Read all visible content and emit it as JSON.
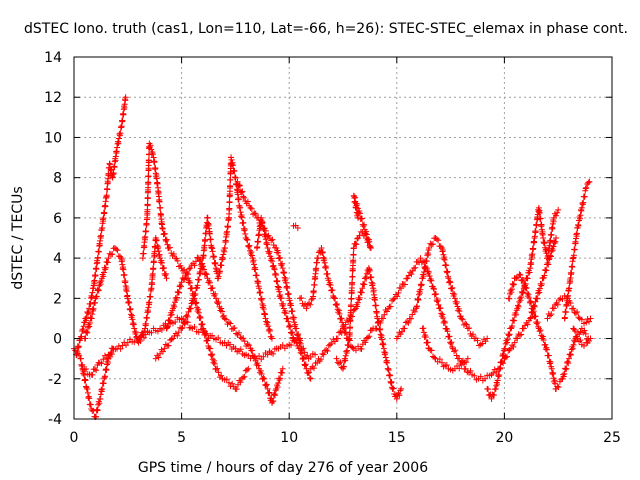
{
  "chart_data": {
    "type": "scatter",
    "title": "dSTEC Iono. truth (cas1, Lon=110, Lat=-66, h=26): STEC-STEC_elemax in phase cont.",
    "xlabel": "GPS time / hours of day 276 of year 2006",
    "ylabel": "dSTEC  / TECUs",
    "xlim": [
      0,
      25
    ],
    "ylim": [
      -4,
      14
    ],
    "xticks": [
      0,
      5,
      10,
      15,
      20,
      25
    ],
    "yticks": [
      -4,
      -2,
      0,
      2,
      4,
      6,
      8,
      10,
      12,
      14
    ],
    "grid": true,
    "marker": "+",
    "colors": {
      "series": "#ff0000",
      "axes": "#000000",
      "grid": "#a0a0a0"
    },
    "series": [
      {
        "values": [
          [
            0.0,
            -0.5
          ],
          [
            0.3,
            -1.0
          ],
          [
            0.6,
            -2.5
          ],
          [
            0.8,
            -3.5
          ],
          [
            1.0,
            -3.9
          ],
          [
            1.2,
            -3.0
          ],
          [
            1.4,
            -2.0
          ],
          [
            1.6,
            -1.0
          ],
          [
            1.8,
            -0.5
          ]
        ]
      },
      {
        "values": [
          [
            0.1,
            -0.8
          ],
          [
            0.3,
            0.0
          ],
          [
            0.5,
            0.8
          ],
          [
            0.7,
            1.5
          ],
          [
            0.9,
            2.5
          ],
          [
            1.1,
            4.0
          ],
          [
            1.3,
            5.5
          ],
          [
            1.5,
            7.0
          ],
          [
            1.65,
            8.7
          ],
          [
            1.8,
            8.0
          ],
          [
            2.0,
            9.5
          ],
          [
            2.2,
            10.5
          ],
          [
            2.4,
            12.0
          ]
        ]
      },
      {
        "values": [
          [
            0.5,
            0.0
          ],
          [
            0.8,
            1.0
          ],
          [
            1.0,
            2.0
          ],
          [
            1.3,
            3.0
          ],
          [
            1.6,
            4.0
          ],
          [
            1.9,
            4.5
          ],
          [
            2.2,
            4.0
          ],
          [
            2.5,
            2.0
          ],
          [
            2.8,
            0.5
          ],
          [
            3.0,
            -0.2
          ],
          [
            3.3,
            0.5
          ],
          [
            3.6,
            2.5
          ],
          [
            3.8,
            5.0
          ],
          [
            4.0,
            4.0
          ],
          [
            4.3,
            3.0
          ]
        ]
      },
      {
        "values": [
          [
            0.4,
            -1.5
          ],
          [
            0.8,
            -1.8
          ],
          [
            1.2,
            -1.2
          ],
          [
            1.6,
            -0.8
          ],
          [
            2.0,
            -0.5
          ],
          [
            2.5,
            -0.2
          ],
          [
            3.0,
            0.0
          ],
          [
            3.5,
            0.3
          ],
          [
            4.0,
            0.5
          ],
          [
            4.5,
            0.8
          ],
          [
            5.0,
            1.0
          ],
          [
            5.5,
            0.5
          ],
          [
            6.0,
            0.3
          ],
          [
            6.5,
            0.0
          ],
          [
            7.0,
            -0.2
          ],
          [
            7.5,
            -0.5
          ],
          [
            8.0,
            -0.8
          ],
          [
            8.5,
            -1.0
          ],
          [
            9.0,
            -0.8
          ],
          [
            9.5,
            -0.5
          ],
          [
            10.0,
            -0.3
          ],
          [
            10.5,
            0.0
          ]
        ]
      },
      {
        "values": [
          [
            3.2,
            4.0
          ],
          [
            3.4,
            6.0
          ],
          [
            3.5,
            9.7
          ],
          [
            3.7,
            9.0
          ],
          [
            3.9,
            7.5
          ],
          [
            4.1,
            5.5
          ],
          [
            4.4,
            4.5
          ],
          [
            4.7,
            4.0
          ],
          [
            5.0,
            3.5
          ],
          [
            5.3,
            3.0
          ],
          [
            5.6,
            2.0
          ],
          [
            6.0,
            0.5
          ],
          [
            6.3,
            -0.5
          ],
          [
            6.6,
            -1.5
          ],
          [
            6.9,
            -2.0
          ],
          [
            7.2,
            -2.2
          ],
          [
            7.5,
            -2.5
          ],
          [
            7.8,
            -2.0
          ],
          [
            8.1,
            -1.5
          ]
        ]
      },
      {
        "values": [
          [
            3.8,
            -1.0
          ],
          [
            4.2,
            -0.5
          ],
          [
            4.6,
            0.0
          ],
          [
            5.0,
            0.5
          ],
          [
            5.4,
            1.5
          ],
          [
            5.7,
            2.5
          ],
          [
            6.0,
            4.0
          ],
          [
            6.2,
            6.0
          ],
          [
            6.4,
            4.5
          ],
          [
            6.7,
            3.0
          ],
          [
            7.0,
            4.5
          ],
          [
            7.2,
            6.0
          ],
          [
            7.3,
            9.0
          ],
          [
            7.5,
            8.0
          ],
          [
            7.7,
            6.5
          ],
          [
            8.0,
            5.0
          ],
          [
            8.3,
            4.0
          ],
          [
            8.6,
            2.5
          ],
          [
            8.9,
            1.0
          ],
          [
            9.2,
            0.0
          ]
        ]
      },
      {
        "values": [
          [
            4.3,
            0.5
          ],
          [
            4.6,
            1.5
          ],
          [
            5.0,
            2.8
          ],
          [
            5.4,
            3.5
          ],
          [
            5.8,
            4.0
          ],
          [
            6.2,
            3.0
          ],
          [
            6.6,
            2.0
          ],
          [
            7.0,
            1.0
          ],
          [
            7.4,
            0.5
          ],
          [
            7.8,
            0.0
          ],
          [
            8.2,
            -0.5
          ],
          [
            8.6,
            -1.5
          ],
          [
            9.0,
            -2.5
          ],
          [
            9.2,
            -3.2
          ],
          [
            9.4,
            -2.5
          ],
          [
            9.7,
            -1.5
          ]
        ]
      },
      {
        "values": [
          [
            7.6,
            7.8
          ],
          [
            7.9,
            7.0
          ],
          [
            8.2,
            6.5
          ],
          [
            8.5,
            6.0
          ],
          [
            8.8,
            5.5
          ],
          [
            9.1,
            5.0
          ],
          [
            9.4,
            4.5
          ],
          [
            9.7,
            3.5
          ],
          [
            10.0,
            2.0
          ],
          [
            10.3,
            0.5
          ],
          [
            10.6,
            -0.5
          ],
          [
            10.9,
            -1.0
          ],
          [
            11.2,
            -0.8
          ]
        ]
      },
      {
        "values": [
          [
            8.5,
            4.5
          ],
          [
            8.7,
            6.0
          ],
          [
            9.0,
            4.5
          ],
          [
            9.3,
            3.5
          ],
          [
            9.6,
            2.0
          ],
          [
            9.9,
            1.0
          ],
          [
            10.2,
            0.0
          ],
          [
            10.5,
            -0.5
          ],
          [
            10.8,
            -1.5
          ],
          [
            11.0,
            -2.0
          ]
        ]
      },
      {
        "values": [
          [
            10.2,
            5.6
          ],
          [
            10.4,
            5.5
          ]
        ]
      },
      {
        "values": [
          [
            10.5,
            2.0
          ],
          [
            10.8,
            1.5
          ],
          [
            11.1,
            2.0
          ],
          [
            11.3,
            4.0
          ],
          [
            11.5,
            4.5
          ],
          [
            11.8,
            3.0
          ],
          [
            12.1,
            2.0
          ],
          [
            12.4,
            1.0
          ],
          [
            12.7,
            0.0
          ],
          [
            13.0,
            -0.5
          ],
          [
            13.3,
            -0.5
          ],
          [
            13.6,
            0.0
          ],
          [
            13.9,
            0.5
          ]
        ]
      },
      {
        "values": [
          [
            11.0,
            -1.5
          ],
          [
            11.3,
            -1.2
          ],
          [
            11.6,
            -0.8
          ],
          [
            11.9,
            -0.3
          ],
          [
            12.2,
            0.0
          ],
          [
            12.5,
            0.5
          ],
          [
            12.8,
            1.0
          ],
          [
            13.1,
            1.5
          ],
          [
            13.4,
            2.5
          ],
          [
            13.7,
            3.5
          ],
          [
            13.9,
            2.5
          ],
          [
            14.1,
            1.0
          ],
          [
            14.4,
            -0.5
          ],
          [
            14.6,
            -1.5
          ],
          [
            14.8,
            -2.5
          ],
          [
            15.0,
            -3.0
          ],
          [
            15.2,
            -2.5
          ]
        ]
      },
      {
        "values": [
          [
            12.2,
            -1.0
          ],
          [
            12.5,
            -1.5
          ],
          [
            12.8,
            0.0
          ],
          [
            13.0,
            4.5
          ],
          [
            13.2,
            5.0
          ],
          [
            13.4,
            5.3
          ],
          [
            13.6,
            5.0
          ],
          [
            13.8,
            4.5
          ],
          [
            13.0,
            7.1
          ],
          [
            13.1,
            6.5
          ],
          [
            13.2,
            6.0
          ]
        ]
      },
      {
        "values": [
          [
            14.0,
            0.5
          ],
          [
            14.3,
            1.0
          ],
          [
            14.6,
            1.5
          ],
          [
            14.9,
            2.0
          ],
          [
            15.2,
            2.5
          ],
          [
            15.5,
            3.0
          ],
          [
            15.8,
            3.5
          ],
          [
            16.1,
            4.0
          ],
          [
            16.4,
            3.5
          ],
          [
            16.7,
            2.5
          ],
          [
            17.0,
            1.5
          ],
          [
            17.3,
            0.5
          ],
          [
            17.6,
            -0.5
          ],
          [
            17.9,
            -1.0
          ],
          [
            18.2,
            -1.5
          ],
          [
            18.5,
            -1.8
          ],
          [
            18.8,
            -2.0
          ],
          [
            19.1,
            -2.0
          ],
          [
            19.4,
            -1.8
          ],
          [
            19.7,
            -1.5
          ],
          [
            20.0,
            -1.0
          ]
        ]
      },
      {
        "values": [
          [
            15.0,
            0.0
          ],
          [
            15.3,
            0.5
          ],
          [
            15.6,
            1.0
          ],
          [
            15.9,
            1.5
          ],
          [
            16.2,
            3.0
          ],
          [
            16.5,
            4.5
          ],
          [
            16.8,
            5.0
          ],
          [
            17.1,
            4.5
          ],
          [
            17.4,
            3.0
          ],
          [
            17.7,
            2.0
          ],
          [
            18.0,
            1.0
          ],
          [
            18.3,
            0.5
          ],
          [
            18.6,
            0.0
          ],
          [
            18.9,
            -0.3
          ],
          [
            19.2,
            0.0
          ]
        ]
      },
      {
        "values": [
          [
            16.2,
            0.5
          ],
          [
            16.5,
            -0.5
          ],
          [
            16.8,
            -1.0
          ],
          [
            17.1,
            -1.2
          ],
          [
            17.4,
            -1.5
          ],
          [
            17.7,
            -1.5
          ],
          [
            18.0,
            -1.3
          ],
          [
            18.3,
            -1.0
          ]
        ]
      },
      {
        "values": [
          [
            19.2,
            -2.5
          ],
          [
            19.4,
            -3.0
          ],
          [
            19.6,
            -2.5
          ],
          [
            19.8,
            -1.5
          ],
          [
            20.0,
            -0.5
          ],
          [
            20.3,
            0.5
          ],
          [
            20.6,
            1.5
          ],
          [
            20.9,
            2.5
          ],
          [
            21.2,
            3.5
          ],
          [
            21.4,
            5.0
          ],
          [
            21.6,
            6.5
          ],
          [
            21.8,
            5.0
          ],
          [
            22.0,
            4.0
          ],
          [
            22.3,
            6.0
          ],
          [
            22.5,
            6.4
          ]
        ]
      },
      {
        "values": [
          [
            20.0,
            -1.0
          ],
          [
            20.3,
            -0.5
          ],
          [
            20.6,
            0.0
          ],
          [
            20.9,
            0.5
          ],
          [
            21.2,
            1.0
          ],
          [
            21.5,
            2.0
          ],
          [
            21.8,
            3.0
          ],
          [
            22.1,
            4.0
          ],
          [
            22.4,
            5.0
          ]
        ]
      },
      {
        "values": [
          [
            20.2,
            2.0
          ],
          [
            20.5,
            3.0
          ],
          [
            20.7,
            3.2
          ],
          [
            21.0,
            2.5
          ],
          [
            21.3,
            1.5
          ],
          [
            21.6,
            0.5
          ],
          [
            21.9,
            -0.3
          ],
          [
            22.2,
            -1.5
          ],
          [
            22.4,
            -2.5
          ],
          [
            22.7,
            -2.0
          ],
          [
            23.0,
            -1.0
          ],
          [
            23.3,
            0.0
          ],
          [
            23.6,
            0.5
          ],
          [
            23.9,
            0.0
          ]
        ]
      },
      {
        "values": [
          [
            22.8,
            1.0
          ],
          [
            23.0,
            2.5
          ],
          [
            23.2,
            4.0
          ],
          [
            23.4,
            5.5
          ],
          [
            23.6,
            6.5
          ],
          [
            23.8,
            7.5
          ],
          [
            23.95,
            7.8
          ]
        ]
      },
      {
        "values": [
          [
            23.2,
            0.5
          ],
          [
            23.4,
            0.0
          ],
          [
            23.6,
            -0.3
          ],
          [
            23.8,
            -0.2
          ],
          [
            24.0,
            0.0
          ]
        ]
      },
      {
        "values": [
          [
            22.0,
            1.0
          ],
          [
            22.3,
            1.5
          ],
          [
            22.6,
            2.0
          ],
          [
            22.9,
            2.0
          ],
          [
            23.2,
            1.5
          ],
          [
            23.5,
            1.0
          ],
          [
            23.8,
            0.8
          ],
          [
            24.0,
            1.0
          ]
        ]
      }
    ]
  }
}
